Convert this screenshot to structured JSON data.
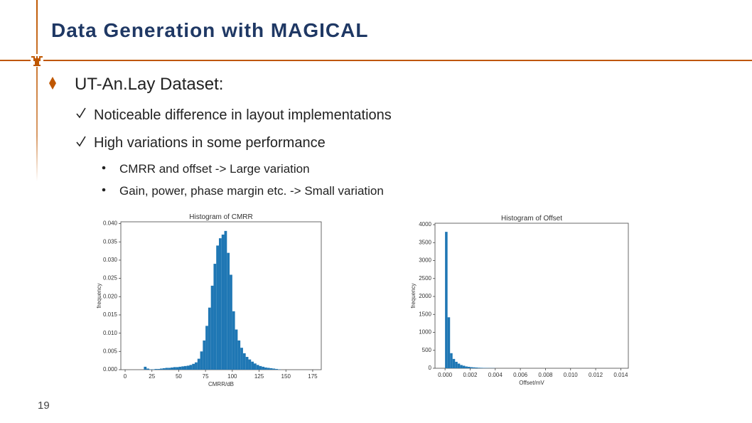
{
  "slide": {
    "title": "Data Generation with MAGICAL",
    "bullet": "UT-An.Lay Dataset:",
    "checks": [
      "Noticeable difference in layout implementations",
      "High variations in some performance"
    ],
    "sub_bullets": [
      "CMRR and offset -> Large variation",
      "Gain, power, phase margin etc. -> Small variation"
    ],
    "page_number": 19
  },
  "chart_data": [
    {
      "type": "histogram",
      "title": "Histogram of CMRR",
      "xlabel": "CMRR/dB",
      "ylabel": "frequency",
      "color": "#1f77b4",
      "bins": [
        15,
        17.5,
        20,
        22.5,
        25,
        27.5,
        30,
        32.5,
        35,
        37.5,
        40,
        42.5,
        45,
        47.5,
        50,
        52.5,
        55,
        57.5,
        60,
        62.5,
        65,
        67.5,
        70,
        72.5,
        75,
        77.5,
        80,
        82.5,
        85,
        87.5,
        90,
        92.5,
        95,
        97.5,
        100,
        102.5,
        105,
        107.5,
        110,
        112.5,
        115,
        117.5,
        120,
        122.5,
        125,
        127.5,
        130,
        132.5,
        135,
        137.5,
        140,
        142.5,
        145
      ],
      "counts": [
        0.0,
        0.0008,
        0.0003,
        0.0001,
        0.0001,
        0.0002,
        0.0002,
        0.0003,
        0.0004,
        0.0005,
        0.0005,
        0.0006,
        0.0007,
        0.0007,
        0.0008,
        0.0009,
        0.001,
        0.0011,
        0.0013,
        0.0016,
        0.002,
        0.003,
        0.005,
        0.008,
        0.012,
        0.017,
        0.023,
        0.029,
        0.034,
        0.036,
        0.037,
        0.038,
        0.032,
        0.026,
        0.016,
        0.011,
        0.008,
        0.006,
        0.0045,
        0.0035,
        0.0028,
        0.0022,
        0.0017,
        0.0013,
        0.001,
        0.0008,
        0.0006,
        0.0005,
        0.0004,
        0.0003,
        0.0002,
        0.0001
      ],
      "xlim": [
        -4,
        183
      ],
      "ylim": [
        0,
        0.0405
      ],
      "xticks": [
        0,
        25,
        50,
        75,
        100,
        125,
        150,
        175
      ],
      "yticks": [
        {
          "value": 0,
          "label": "0.000"
        },
        {
          "value": 0.005,
          "label": "0.005"
        },
        {
          "value": 0.01,
          "label": "0.010"
        },
        {
          "value": 0.015,
          "label": "0.015"
        },
        {
          "value": 0.02,
          "label": "0.020"
        },
        {
          "value": 0.025,
          "label": "0.025"
        },
        {
          "value": 0.03,
          "label": "0.030"
        },
        {
          "value": 0.035,
          "label": "0.035"
        },
        {
          "value": 0.04,
          "label": "0.040"
        }
      ]
    },
    {
      "type": "histogram",
      "title": "Histogram of Offset",
      "xlabel": "Offset/mV",
      "ylabel": "frequency",
      "color": "#1f77b4",
      "bins": [
        0,
        0.0002,
        0.0004,
        0.0006,
        0.0008,
        0.001,
        0.0012,
        0.0014,
        0.0016,
        0.0018,
        0.002,
        0.0022,
        0.0024,
        0.0026,
        0.0028,
        0.003,
        0.0032,
        0.0034,
        0.0036,
        0.0038,
        0.004
      ],
      "counts": [
        3800,
        1420,
        420,
        260,
        180,
        130,
        90,
        70,
        50,
        40,
        30,
        25,
        20,
        15,
        12,
        10,
        8,
        6,
        5,
        4
      ],
      "xlim": [
        -0.0008,
        0.0146
      ],
      "ylim": [
        0,
        4040
      ],
      "xticks": [
        {
          "value": 0,
          "label": "0.000"
        },
        {
          "value": 0.002,
          "label": "0.002"
        },
        {
          "value": 0.004,
          "label": "0.004"
        },
        {
          "value": 0.006,
          "label": "0.006"
        },
        {
          "value": 0.008,
          "label": "0.008"
        },
        {
          "value": 0.01,
          "label": "0.010"
        },
        {
          "value": 0.012,
          "label": "0.012"
        },
        {
          "value": 0.014,
          "label": "0.014"
        }
      ],
      "yticks": [
        0,
        500,
        1000,
        1500,
        2000,
        2500,
        3000,
        3500,
        4000
      ]
    }
  ]
}
